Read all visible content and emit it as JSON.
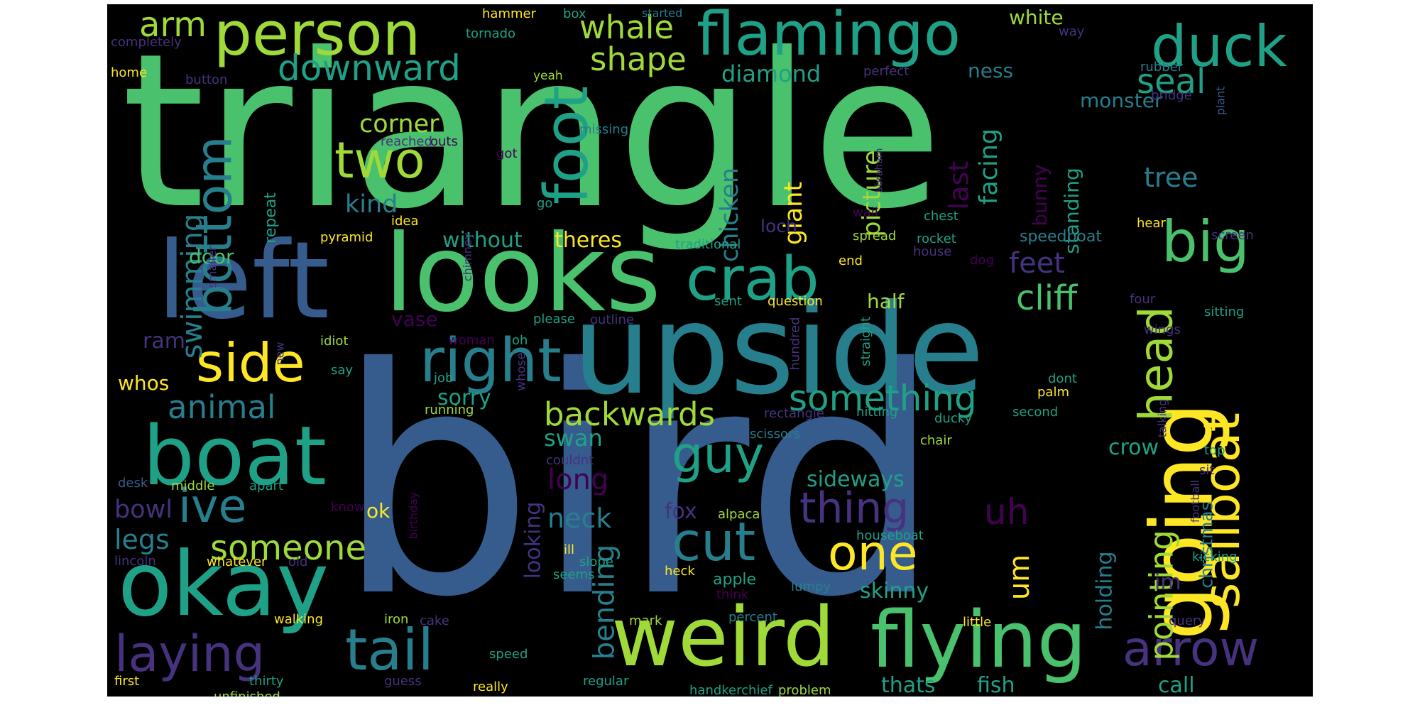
{
  "cloud": {
    "background": "#000000",
    "palette": {
      "p": "#440154",
      "i": "#46327e",
      "b": "#365c8d",
      "t": "#277f8e",
      "c": "#1fa187",
      "g": "#4ac16d",
      "l": "#a0da39",
      "y": "#fde725"
    },
    "words": [
      {
        "text": "triangle",
        "color": "g"
      },
      {
        "text": "bird",
        "color": "b"
      },
      {
        "text": "upside",
        "color": "t"
      },
      {
        "text": "looks",
        "color": "g"
      },
      {
        "text": "left",
        "color": "b"
      },
      {
        "text": "weird",
        "color": "l"
      },
      {
        "text": "going",
        "color": "y"
      },
      {
        "text": "okay",
        "color": "c"
      },
      {
        "text": "boat",
        "color": "c"
      },
      {
        "text": "flying",
        "color": "g"
      },
      {
        "text": "flamingo",
        "color": "c"
      },
      {
        "text": "person",
        "color": "l"
      },
      {
        "text": "foot",
        "color": "c"
      },
      {
        "text": "crab",
        "color": "c"
      },
      {
        "text": "right",
        "color": "t"
      },
      {
        "text": "tail",
        "color": "t"
      },
      {
        "text": "duck",
        "color": "c"
      },
      {
        "text": "sailboat",
        "color": "y"
      },
      {
        "text": "big",
        "color": "g"
      },
      {
        "text": "side",
        "color": "y"
      },
      {
        "text": "bottom",
        "color": "t"
      },
      {
        "text": "arrow",
        "color": "i"
      },
      {
        "text": "head",
        "color": "l"
      },
      {
        "text": "two",
        "color": "l"
      },
      {
        "text": "guy",
        "color": "c"
      },
      {
        "text": "cut",
        "color": "t"
      },
      {
        "text": "laying",
        "color": "i"
      },
      {
        "text": "one",
        "color": "y"
      },
      {
        "text": "ive",
        "color": "t"
      },
      {
        "text": "something",
        "color": "c"
      },
      {
        "text": "thing",
        "color": "i"
      },
      {
        "text": "downward",
        "color": "c"
      },
      {
        "text": "whale",
        "color": "l"
      },
      {
        "text": "shape",
        "color": "l"
      },
      {
        "text": "backwards",
        "color": "l"
      },
      {
        "text": "animal",
        "color": "t"
      },
      {
        "text": "someone",
        "color": "l"
      },
      {
        "text": "pointing",
        "color": "l"
      },
      {
        "text": "swimming",
        "color": "t"
      },
      {
        "text": "bending",
        "color": "t"
      },
      {
        "text": "arm",
        "color": "l"
      },
      {
        "text": "seal",
        "color": "c"
      },
      {
        "text": "cliff",
        "color": "g"
      },
      {
        "text": "uh",
        "color": "p"
      },
      {
        "text": "corner",
        "color": "l"
      },
      {
        "text": "chicken",
        "color": "t"
      },
      {
        "text": "picture",
        "color": "l"
      },
      {
        "text": "facing",
        "color": "c"
      },
      {
        "text": "last",
        "color": "p"
      },
      {
        "text": "tree",
        "color": "t"
      },
      {
        "text": "neck",
        "color": "t"
      },
      {
        "text": "long",
        "color": "p"
      },
      {
        "text": "feet",
        "color": "i"
      },
      {
        "text": "legs",
        "color": "t"
      },
      {
        "text": "bowl",
        "color": "i"
      },
      {
        "text": "um",
        "color": "y"
      },
      {
        "text": "diamond",
        "color": "c"
      },
      {
        "text": "giant",
        "color": "y"
      },
      {
        "text": "kind",
        "color": "t"
      },
      {
        "text": "without",
        "color": "c"
      },
      {
        "text": "theres",
        "color": "y"
      },
      {
        "text": "sideways",
        "color": "c"
      },
      {
        "text": "sorry",
        "color": "c"
      },
      {
        "text": "swan",
        "color": "c"
      },
      {
        "text": "holding",
        "color": "t"
      },
      {
        "text": "looking",
        "color": "i"
      },
      {
        "text": "call",
        "color": "c"
      },
      {
        "text": "fish",
        "color": "c"
      },
      {
        "text": "thats",
        "color": "c"
      },
      {
        "text": "im",
        "color": "i"
      },
      {
        "text": "christmas",
        "color": "t"
      },
      {
        "text": "crow",
        "color": "c"
      },
      {
        "text": "bunny",
        "color": "p"
      },
      {
        "text": "standing",
        "color": "c"
      },
      {
        "text": "skinny",
        "color": "c"
      },
      {
        "text": "fox",
        "color": "i"
      },
      {
        "text": "half",
        "color": "l"
      },
      {
        "text": "ness",
        "color": "t"
      },
      {
        "text": "white",
        "color": "l"
      },
      {
        "text": "monster",
        "color": "t"
      },
      {
        "text": "whos",
        "color": "y"
      },
      {
        "text": "ram",
        "color": "i"
      },
      {
        "text": "door",
        "color": "g"
      },
      {
        "text": "repeat",
        "color": "c"
      },
      {
        "text": "vase",
        "color": "p"
      },
      {
        "text": "ok",
        "color": "y"
      },
      {
        "text": "loch",
        "color": "i"
      },
      {
        "text": "speedboat",
        "color": "t"
      },
      {
        "text": "apple",
        "color": "c"
      },
      {
        "text": "hammer",
        "color": "y"
      },
      {
        "text": "box",
        "color": "c"
      },
      {
        "text": "started",
        "color": "t"
      },
      {
        "text": "way",
        "color": "i"
      },
      {
        "text": "rubber",
        "color": "t"
      },
      {
        "text": "bridge",
        "color": "i"
      },
      {
        "text": "plant",
        "color": "b"
      },
      {
        "text": "tornado",
        "color": "c"
      },
      {
        "text": "yeah",
        "color": "l"
      },
      {
        "text": "completely",
        "color": "i"
      },
      {
        "text": "home",
        "color": "y"
      },
      {
        "text": "button",
        "color": "i"
      },
      {
        "text": "perfect",
        "color": "i"
      },
      {
        "text": "missing",
        "color": "t"
      },
      {
        "text": "abraham",
        "color": "i"
      },
      {
        "text": "reached",
        "color": "i"
      },
      {
        "text": "outs",
        "color": "p"
      },
      {
        "text": "got",
        "color": "p"
      },
      {
        "text": "chimney",
        "color": "i"
      },
      {
        "text": "chest",
        "color": "c"
      },
      {
        "text": "wall",
        "color": "p"
      },
      {
        "text": "go",
        "color": "c"
      },
      {
        "text": "smaller",
        "color": "i"
      },
      {
        "text": "idea",
        "color": "y"
      },
      {
        "text": "pyramid",
        "color": "y"
      },
      {
        "text": "traditional",
        "color": "c"
      },
      {
        "text": "spread",
        "color": "l"
      },
      {
        "text": "rocket",
        "color": "c"
      },
      {
        "text": "house",
        "color": "i"
      },
      {
        "text": "hear",
        "color": "y"
      },
      {
        "text": "screen",
        "color": "i"
      },
      {
        "text": "end",
        "color": "y"
      },
      {
        "text": "dog",
        "color": "p"
      },
      {
        "text": "sent",
        "color": "c"
      },
      {
        "text": "question",
        "color": "y"
      },
      {
        "text": "four",
        "color": "i"
      },
      {
        "text": "sitting",
        "color": "c"
      },
      {
        "text": "please",
        "color": "c"
      },
      {
        "text": "outline",
        "color": "i"
      },
      {
        "text": "wings",
        "color": "i"
      },
      {
        "text": "oh",
        "color": "c"
      },
      {
        "text": "woman",
        "color": "p"
      },
      {
        "text": "straight",
        "color": "c"
      },
      {
        "text": "new",
        "color": "i"
      },
      {
        "text": "hundred",
        "color": "i"
      },
      {
        "text": "whose",
        "color": "i"
      },
      {
        "text": "idiot",
        "color": "l"
      },
      {
        "text": "job",
        "color": "c"
      },
      {
        "text": "say",
        "color": "c"
      },
      {
        "text": "dont",
        "color": "c"
      },
      {
        "text": "palm",
        "color": "y"
      },
      {
        "text": "running",
        "color": "l"
      },
      {
        "text": "rectangle",
        "color": "i"
      },
      {
        "text": "hitting",
        "color": "c"
      },
      {
        "text": "second",
        "color": "c"
      },
      {
        "text": "talking",
        "color": "i"
      },
      {
        "text": "scissors",
        "color": "t"
      },
      {
        "text": "ducky",
        "color": "c"
      },
      {
        "text": "chair",
        "color": "l"
      },
      {
        "text": "top",
        "color": "c"
      },
      {
        "text": "sit",
        "color": "i"
      },
      {
        "text": "couldnt",
        "color": "i"
      },
      {
        "text": "desk",
        "color": "b"
      },
      {
        "text": "middle",
        "color": "l"
      },
      {
        "text": "apart",
        "color": "c"
      },
      {
        "text": "birthday",
        "color": "p"
      },
      {
        "text": "football",
        "color": "i"
      },
      {
        "text": "know",
        "color": "p"
      },
      {
        "text": "alpaca",
        "color": "l"
      },
      {
        "text": "houseboat",
        "color": "c"
      },
      {
        "text": "lincoln",
        "color": "i"
      },
      {
        "text": "whatever",
        "color": "y"
      },
      {
        "text": "old",
        "color": "i"
      },
      {
        "text": "ill",
        "color": "y"
      },
      {
        "text": "slope",
        "color": "c"
      },
      {
        "text": "seems",
        "color": "c"
      },
      {
        "text": "kicking",
        "color": "c"
      },
      {
        "text": "heck",
        "color": "y"
      },
      {
        "text": "think",
        "color": "p"
      },
      {
        "text": "lumpy",
        "color": "t"
      },
      {
        "text": "walking",
        "color": "y"
      },
      {
        "text": "iron",
        "color": "l"
      },
      {
        "text": "cake",
        "color": "i"
      },
      {
        "text": "mark",
        "color": "l"
      },
      {
        "text": "percent",
        "color": "t"
      },
      {
        "text": "little",
        "color": "y"
      },
      {
        "text": "query",
        "color": "i"
      },
      {
        "text": "speed",
        "color": "c"
      },
      {
        "text": "first",
        "color": "y"
      },
      {
        "text": "thirty",
        "color": "c"
      },
      {
        "text": "unfinished",
        "color": "l"
      },
      {
        "text": "guess",
        "color": "i"
      },
      {
        "text": "really",
        "color": "y"
      },
      {
        "text": "regular",
        "color": "c"
      },
      {
        "text": "handkerchief",
        "color": "c"
      },
      {
        "text": "problem",
        "color": "l"
      }
    ]
  }
}
